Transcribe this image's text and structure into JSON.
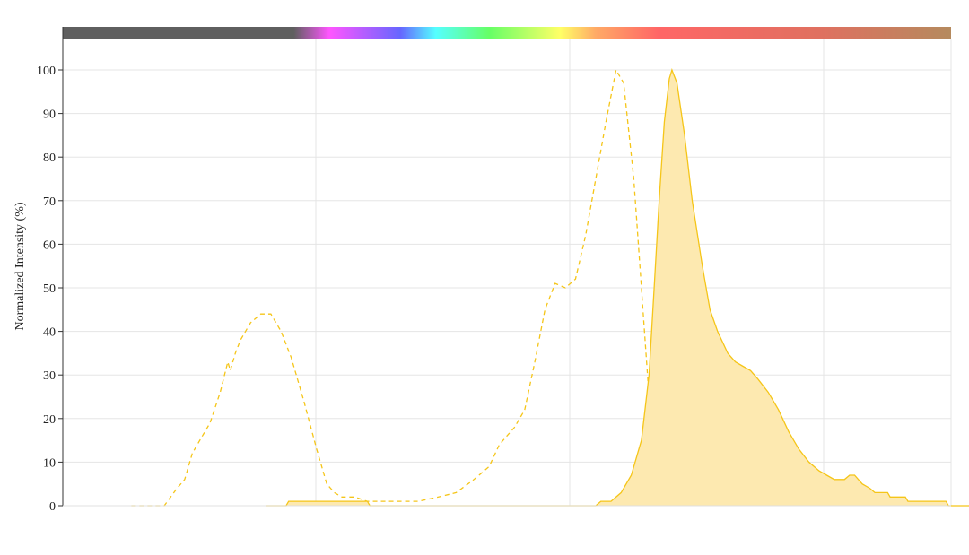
{
  "chart_data": {
    "type": "area",
    "title": "",
    "xlabel": "",
    "ylabel": "Normalized Intensity (%)",
    "ylim": [
      0,
      100
    ],
    "xlim": [
      300,
      650
    ],
    "yticks": [
      "0",
      "10",
      "20",
      "30",
      "40",
      "50",
      "60",
      "70",
      "80",
      "90",
      "100"
    ],
    "grid": true,
    "spectrum_bar": true,
    "series": [
      {
        "style": "dashed",
        "color": "#f5c518",
        "points": [
          [
            327,
            0
          ],
          [
            340,
            0
          ],
          [
            345,
            4
          ],
          [
            348,
            6
          ],
          [
            351,
            12
          ],
          [
            354,
            15
          ],
          [
            358,
            19
          ],
          [
            362,
            26
          ],
          [
            365,
            33
          ],
          [
            366,
            31
          ],
          [
            368,
            35
          ],
          [
            370,
            38
          ],
          [
            374,
            42
          ],
          [
            378,
            44
          ],
          [
            382,
            44
          ],
          [
            386,
            40
          ],
          [
            390,
            34
          ],
          [
            395,
            24
          ],
          [
            400,
            13
          ],
          [
            404,
            5
          ],
          [
            407,
            3
          ],
          [
            410,
            2
          ],
          [
            415,
            2
          ],
          [
            420,
            1
          ],
          [
            440,
            1
          ],
          [
            448,
            2
          ],
          [
            455,
            3
          ],
          [
            462,
            6
          ],
          [
            468,
            9
          ],
          [
            472,
            14
          ],
          [
            478,
            18
          ],
          [
            482,
            22
          ],
          [
            486,
            33
          ],
          [
            490,
            45
          ],
          [
            494,
            51
          ],
          [
            498,
            50
          ],
          [
            502,
            52
          ],
          [
            506,
            62
          ],
          [
            510,
            75
          ],
          [
            514,
            88
          ],
          [
            518,
            100
          ],
          [
            521,
            97
          ],
          [
            525,
            75
          ],
          [
            528,
            50
          ],
          [
            531,
            25
          ],
          [
            534,
            10
          ],
          [
            538,
            3
          ],
          [
            542,
            1
          ],
          [
            546,
            1
          ],
          [
            550,
            0
          ]
        ]
      },
      {
        "style": "filled",
        "color": "#f5c518",
        "fill": "#fde9b0",
        "points": [
          [
            380,
            0
          ],
          [
            388,
            0
          ],
          [
            389,
            1
          ],
          [
            400,
            1
          ],
          [
            412,
            1
          ],
          [
            420,
            1
          ],
          [
            421,
            0
          ],
          [
            475,
            0
          ],
          [
            478,
            0
          ],
          [
            510,
            0
          ],
          [
            512,
            1
          ],
          [
            516,
            1
          ],
          [
            520,
            3
          ],
          [
            524,
            7
          ],
          [
            528,
            15
          ],
          [
            531,
            30
          ],
          [
            533,
            50
          ],
          [
            535,
            70
          ],
          [
            537,
            88
          ],
          [
            539,
            98
          ],
          [
            540,
            100
          ],
          [
            542,
            97
          ],
          [
            545,
            85
          ],
          [
            548,
            70
          ],
          [
            552,
            55
          ],
          [
            555,
            45
          ],
          [
            558,
            40
          ],
          [
            562,
            35
          ],
          [
            565,
            33
          ],
          [
            568,
            32
          ],
          [
            571,
            31
          ],
          [
            574,
            29
          ],
          [
            578,
            26
          ],
          [
            582,
            22
          ],
          [
            586,
            17
          ],
          [
            590,
            13
          ],
          [
            594,
            10
          ],
          [
            598,
            8
          ],
          [
            601,
            7
          ],
          [
            604,
            6
          ],
          [
            608,
            6
          ],
          [
            610,
            7
          ],
          [
            612,
            7
          ],
          [
            615,
            5
          ],
          [
            618,
            4
          ],
          [
            620,
            3
          ],
          [
            625,
            3
          ],
          [
            626,
            2
          ],
          [
            632,
            2
          ],
          [
            633,
            1
          ],
          [
            648,
            1
          ],
          [
            649,
            0
          ],
          [
            664,
            0
          ]
        ]
      }
    ]
  }
}
